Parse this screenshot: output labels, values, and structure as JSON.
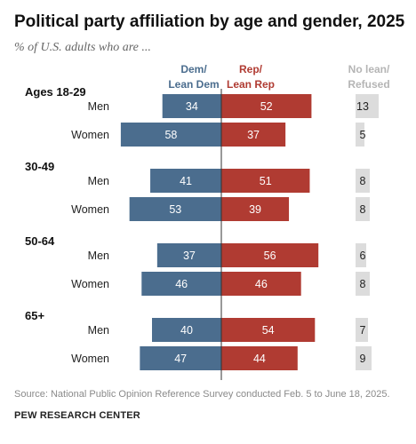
{
  "title": "Political party affiliation by age and gender, 2025",
  "subtitle": "% of U.S. adults who are ...",
  "source": "Source: National Public Opinion Reference Survey conducted Feb. 5 to June 18, 2025.",
  "org": "PEW RESEARCH CENTER",
  "colors": {
    "dem": "#4b6d8e",
    "rep": "#b03b32",
    "none": "#dcdcdc",
    "header_none": "#b5b5b5"
  },
  "chart_data": {
    "type": "bar",
    "headers": {
      "dem": [
        "Dem/",
        "Lean Dem"
      ],
      "rep": [
        "Rep/",
        "Lean Rep"
      ],
      "none": [
        "No lean/",
        "Refused"
      ]
    },
    "groups": [
      {
        "label": "Ages 18-29",
        "rows": [
          {
            "label": "Men",
            "dem": 34,
            "rep": 52,
            "none": 13
          },
          {
            "label": "Women",
            "dem": 58,
            "rep": 37,
            "none": 5
          }
        ]
      },
      {
        "label": "30-49",
        "rows": [
          {
            "label": "Men",
            "dem": 41,
            "rep": 51,
            "none": 8
          },
          {
            "label": "Women",
            "dem": 53,
            "rep": 39,
            "none": 8
          }
        ]
      },
      {
        "label": "50-64",
        "rows": [
          {
            "label": "Men",
            "dem": 37,
            "rep": 56,
            "none": 6
          },
          {
            "label": "Women",
            "dem": 46,
            "rep": 46,
            "none": 8
          }
        ]
      },
      {
        "label": "65+",
        "rows": [
          {
            "label": "Men",
            "dem": 40,
            "rep": 54,
            "none": 7
          },
          {
            "label": "Women",
            "dem": 47,
            "rep": 44,
            "none": 9
          }
        ]
      }
    ]
  }
}
